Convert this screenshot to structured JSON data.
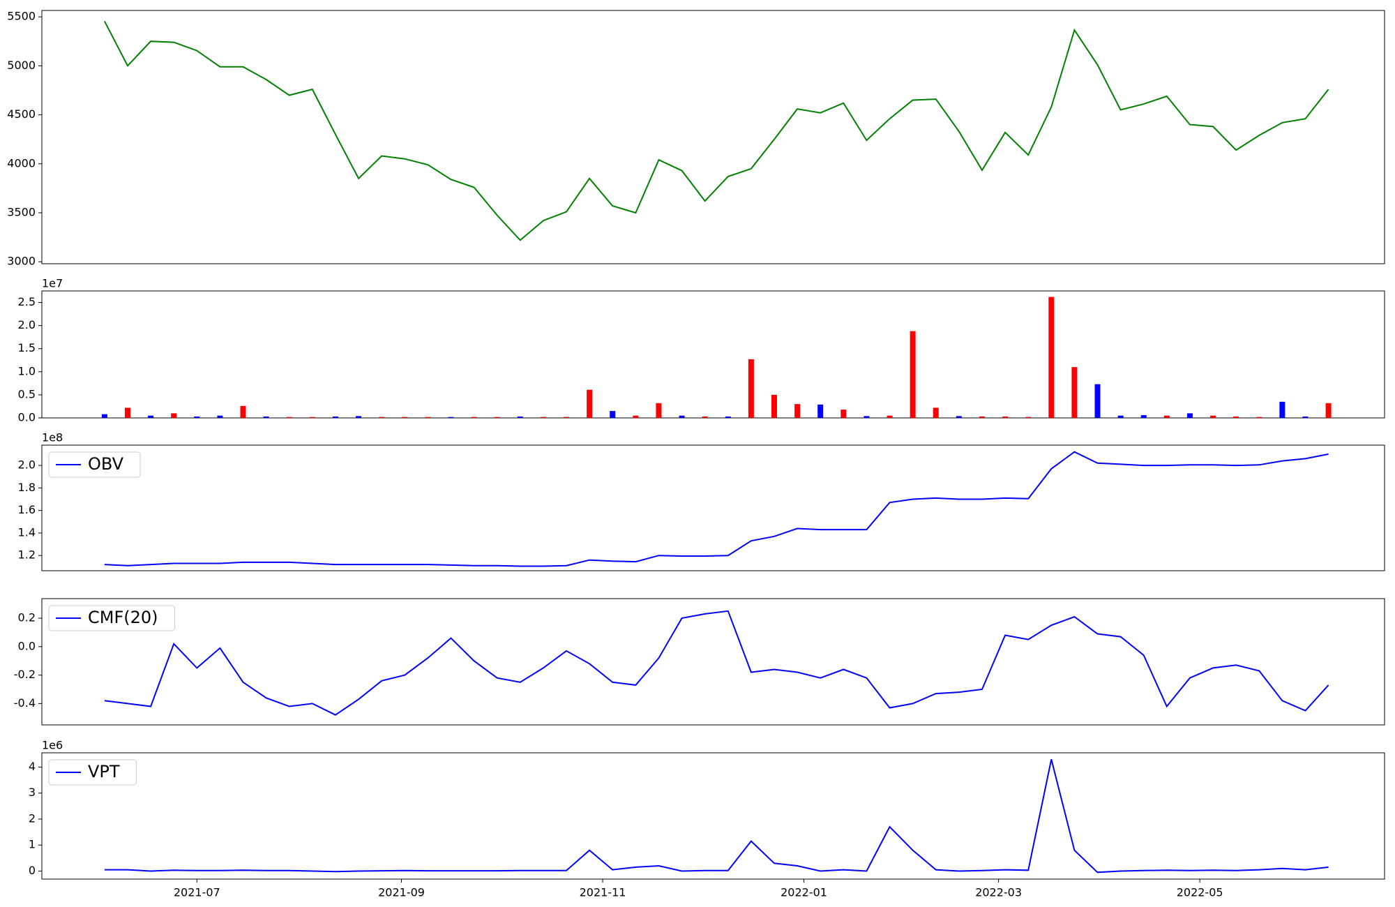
{
  "chart_data": [
    {
      "type": "line",
      "color": "#008000",
      "x": [
        "2021-06-03",
        "2021-06-10",
        "2021-06-17",
        "2021-06-24",
        "2021-07-01",
        "2021-07-08",
        "2021-07-15",
        "2021-07-22",
        "2021-07-29",
        "2021-08-05",
        "2021-08-12",
        "2021-08-19",
        "2021-08-26",
        "2021-09-02",
        "2021-09-09",
        "2021-09-16",
        "2021-09-23",
        "2021-09-30",
        "2021-10-07",
        "2021-10-14",
        "2021-10-21",
        "2021-10-28",
        "2021-11-04",
        "2021-11-11",
        "2021-11-18",
        "2021-11-25",
        "2021-12-02",
        "2021-12-09",
        "2021-12-16",
        "2021-12-23",
        "2021-12-30",
        "2022-01-06",
        "2022-01-13",
        "2022-01-20",
        "2022-01-27",
        "2022-02-03",
        "2022-02-10",
        "2022-02-17",
        "2022-02-24",
        "2022-03-03",
        "2022-03-10",
        "2022-03-17",
        "2022-03-24",
        "2022-03-31",
        "2022-04-07",
        "2022-04-14",
        "2022-04-21",
        "2022-04-28",
        "2022-05-05",
        "2022-05-12",
        "2022-05-19",
        "2022-05-26",
        "2022-06-02",
        "2022-06-09"
      ],
      "values": [
        5455,
        5000,
        5250,
        5240,
        5155,
        4990,
        4990,
        4860,
        4700,
        4760,
        4300,
        3850,
        4080,
        4050,
        3990,
        3840,
        3760,
        3475,
        3220,
        3420,
        3510,
        3850,
        3570,
        3500,
        4040,
        3930,
        3620,
        3870,
        3950,
        4250,
        4560,
        4520,
        4620,
        4240,
        4460,
        4650,
        4660,
        4330,
        3935,
        4320,
        4090,
        4580,
        5365,
        5010,
        4550,
        4610,
        4690,
        4400,
        4380,
        4140,
        4290,
        4420,
        4460,
        4760
      ],
      "xlim": [
        "2021-05-15",
        "2022-06-26"
      ],
      "ylim": [
        2980,
        5565
      ],
      "yticks": [
        3000,
        3500,
        4000,
        4500,
        5000,
        5500
      ]
    },
    {
      "type": "bar",
      "x": [
        "2021-06-03",
        "2021-06-10",
        "2021-06-17",
        "2021-06-24",
        "2021-07-01",
        "2021-07-08",
        "2021-07-15",
        "2021-07-22",
        "2021-07-29",
        "2021-08-05",
        "2021-08-12",
        "2021-08-19",
        "2021-08-26",
        "2021-09-02",
        "2021-09-09",
        "2021-09-16",
        "2021-09-23",
        "2021-09-30",
        "2021-10-07",
        "2021-10-14",
        "2021-10-21",
        "2021-10-28",
        "2021-11-04",
        "2021-11-11",
        "2021-11-18",
        "2021-11-25",
        "2021-12-02",
        "2021-12-09",
        "2021-12-16",
        "2021-12-23",
        "2021-12-30",
        "2022-01-06",
        "2022-01-13",
        "2022-01-20",
        "2022-01-27",
        "2022-02-03",
        "2022-02-10",
        "2022-02-17",
        "2022-02-24",
        "2022-03-03",
        "2022-03-10",
        "2022-03-17",
        "2022-03-24",
        "2022-03-31",
        "2022-04-07",
        "2022-04-14",
        "2022-04-21",
        "2022-04-28",
        "2022-05-05",
        "2022-05-12",
        "2022-05-19",
        "2022-05-26",
        "2022-06-02",
        "2022-06-09"
      ],
      "values": [
        0.08,
        0.22,
        0.05,
        0.1,
        0.03,
        0.05,
        0.26,
        0.03,
        0.02,
        0.02,
        0.03,
        0.04,
        0.02,
        0.02,
        0.02,
        0.02,
        0.02,
        0.02,
        0.03,
        0.02,
        0.02,
        0.61,
        0.15,
        0.05,
        0.32,
        0.05,
        0.03,
        0.03,
        1.27,
        0.5,
        0.3,
        0.29,
        0.18,
        0.04,
        0.05,
        1.88,
        0.22,
        0.04,
        0.03,
        0.03,
        0.02,
        2.62,
        1.1,
        0.73,
        0.05,
        0.06,
        0.05,
        0.1,
        0.05,
        0.03,
        0.02,
        0.35,
        0.03,
        0.32
      ],
      "colors": [
        "#0000ff",
        "#ff0000",
        "#0000ff",
        "#ff0000",
        "#0000ff",
        "#0000ff",
        "#ff0000",
        "#0000ff",
        "#ff0000",
        "#ff0000",
        "#0000ff",
        "#0000ff",
        "#ff0000",
        "#ff0000",
        "#ff0000",
        "#0000ff",
        "#ff0000",
        "#ff0000",
        "#0000ff",
        "#ff0000",
        "#ff0000",
        "#ff0000",
        "#0000ff",
        "#ff0000",
        "#ff0000",
        "#0000ff",
        "#ff0000",
        "#0000ff",
        "#ff0000",
        "#ff0000",
        "#ff0000",
        "#0000ff",
        "#ff0000",
        "#0000ff",
        "#ff0000",
        "#ff0000",
        "#ff0000",
        "#0000ff",
        "#ff0000",
        "#ff0000",
        "#ff0000",
        "#ff0000",
        "#ff0000",
        "#0000ff",
        "#0000ff",
        "#0000ff",
        "#ff0000",
        "#0000ff",
        "#ff0000",
        "#ff0000",
        "#ff0000",
        "#0000ff",
        "#0000ff",
        "#ff0000"
      ],
      "xlim": [
        "2021-05-15",
        "2022-06-26"
      ],
      "ylim": [
        0,
        2.75
      ],
      "offset_label": "1e7",
      "yticks": [
        {
          "value": 0,
          "label": "0.0"
        },
        0.5,
        {
          "value": 1,
          "label": "1.0"
        },
        1.5,
        {
          "value": 2,
          "label": "2.0"
        },
        2.5
      ]
    },
    {
      "type": "line",
      "legend": "upper left",
      "x": [
        "2021-06-03",
        "2021-06-10",
        "2021-06-17",
        "2021-06-24",
        "2021-07-01",
        "2021-07-08",
        "2021-07-15",
        "2021-07-22",
        "2021-07-29",
        "2021-08-05",
        "2021-08-12",
        "2021-08-19",
        "2021-08-26",
        "2021-09-02",
        "2021-09-09",
        "2021-09-16",
        "2021-09-23",
        "2021-09-30",
        "2021-10-07",
        "2021-10-14",
        "2021-10-21",
        "2021-10-28",
        "2021-11-04",
        "2021-11-11",
        "2021-11-18",
        "2021-11-25",
        "2021-12-02",
        "2021-12-09",
        "2021-12-16",
        "2021-12-23",
        "2021-12-30",
        "2022-01-06",
        "2022-01-13",
        "2022-01-20",
        "2022-01-27",
        "2022-02-03",
        "2022-02-10",
        "2022-02-17",
        "2022-02-24",
        "2022-03-03",
        "2022-03-10",
        "2022-03-17",
        "2022-03-24",
        "2022-03-31",
        "2022-04-07",
        "2022-04-14",
        "2022-04-21",
        "2022-04-28",
        "2022-05-05",
        "2022-05-12",
        "2022-05-19",
        "2022-05-26",
        "2022-06-02",
        "2022-06-09"
      ],
      "series": [
        {
          "name": "OBV",
          "color": "#0000ff",
          "values": [
            1.12,
            1.11,
            1.12,
            1.13,
            1.13,
            1.13,
            1.14,
            1.14,
            1.14,
            1.13,
            1.12,
            1.12,
            1.12,
            1.12,
            1.12,
            1.115,
            1.11,
            1.11,
            1.105,
            1.105,
            1.11,
            1.16,
            1.15,
            1.145,
            1.2,
            1.195,
            1.195,
            1.2,
            1.33,
            1.37,
            1.44,
            1.43,
            1.43,
            1.43,
            1.67,
            1.7,
            1.71,
            1.7,
            1.7,
            1.71,
            1.705,
            1.97,
            2.12,
            2.02,
            2.01,
            2.0,
            2.0,
            2.005,
            2.005,
            2.0,
            2.005,
            2.04,
            2.06,
            2.1
          ]
        }
      ],
      "xlim": [
        "2021-05-15",
        "2022-06-26"
      ],
      "ylim": [
        1.065,
        2.18
      ],
      "offset_label": "1e8",
      "yticks": [
        1.2,
        1.4,
        1.6,
        1.8,
        {
          "value": 2,
          "label": "2.0"
        }
      ]
    },
    {
      "type": "line",
      "legend": "upper left",
      "x": [
        "2021-06-03",
        "2021-06-10",
        "2021-06-17",
        "2021-06-24",
        "2021-07-01",
        "2021-07-08",
        "2021-07-15",
        "2021-07-22",
        "2021-07-29",
        "2021-08-05",
        "2021-08-12",
        "2021-08-19",
        "2021-08-26",
        "2021-09-02",
        "2021-09-09",
        "2021-09-16",
        "2021-09-23",
        "2021-09-30",
        "2021-10-07",
        "2021-10-14",
        "2021-10-21",
        "2021-10-28",
        "2021-11-04",
        "2021-11-11",
        "2021-11-18",
        "2021-11-25",
        "2021-12-02",
        "2021-12-09",
        "2021-12-16",
        "2021-12-23",
        "2021-12-30",
        "2022-01-06",
        "2022-01-13",
        "2022-01-20",
        "2022-01-27",
        "2022-02-03",
        "2022-02-10",
        "2022-02-17",
        "2022-02-24",
        "2022-03-03",
        "2022-03-10",
        "2022-03-17",
        "2022-03-24",
        "2022-03-31",
        "2022-04-07",
        "2022-04-14",
        "2022-04-21",
        "2022-04-28",
        "2022-05-05",
        "2022-05-12",
        "2022-05-19",
        "2022-05-26",
        "2022-06-02",
        "2022-06-09"
      ],
      "series": [
        {
          "name": "CMF(20)",
          "color": "#0000ff",
          "values": [
            -0.38,
            -0.4,
            -0.42,
            0.02,
            -0.15,
            -0.01,
            -0.25,
            -0.36,
            -0.42,
            -0.4,
            -0.48,
            -0.37,
            -0.24,
            -0.2,
            -0.08,
            0.06,
            -0.1,
            -0.22,
            -0.25,
            -0.15,
            -0.03,
            -0.12,
            -0.25,
            -0.27,
            -0.08,
            0.2,
            0.23,
            0.25,
            -0.18,
            -0.16,
            -0.18,
            -0.22,
            -0.16,
            -0.22,
            -0.43,
            -0.4,
            -0.33,
            -0.32,
            -0.3,
            0.08,
            0.05,
            0.15,
            0.21,
            0.09,
            0.07,
            -0.06,
            -0.42,
            -0.22,
            -0.15,
            -0.13,
            -0.17,
            -0.38,
            -0.45,
            -0.27
          ]
        }
      ],
      "xlim": [
        "2021-05-15",
        "2022-06-26"
      ],
      "ylim": [
        -0.55,
        0.3375
      ],
      "yticks": [
        -0.4,
        -0.2,
        {
          "value": 0,
          "label": "0.0"
        },
        0.2
      ]
    },
    {
      "type": "line",
      "legend": "upper left",
      "x": [
        "2021-06-03",
        "2021-06-10",
        "2021-06-17",
        "2021-06-24",
        "2021-07-01",
        "2021-07-08",
        "2021-07-15",
        "2021-07-22",
        "2021-07-29",
        "2021-08-05",
        "2021-08-12",
        "2021-08-19",
        "2021-08-26",
        "2021-09-02",
        "2021-09-09",
        "2021-09-16",
        "2021-09-23",
        "2021-09-30",
        "2021-10-07",
        "2021-10-14",
        "2021-10-21",
        "2021-10-28",
        "2021-11-04",
        "2021-11-11",
        "2021-11-18",
        "2021-11-25",
        "2021-12-02",
        "2021-12-09",
        "2021-12-16",
        "2021-12-23",
        "2021-12-30",
        "2022-01-06",
        "2022-01-13",
        "2022-01-20",
        "2022-01-27",
        "2022-02-03",
        "2022-02-10",
        "2022-02-17",
        "2022-02-24",
        "2022-03-03",
        "2022-03-10",
        "2022-03-17",
        "2022-03-24",
        "2022-03-31",
        "2022-04-07",
        "2022-04-14",
        "2022-04-21",
        "2022-04-28",
        "2022-05-05",
        "2022-05-12",
        "2022-05-19",
        "2022-05-26",
        "2022-06-02",
        "2022-06-09"
      ],
      "series": [
        {
          "name": "VPT",
          "color": "#0000ff",
          "values": [
            0.05,
            0.05,
            0.0,
            0.03,
            0.02,
            0.02,
            0.03,
            0.02,
            0.02,
            0.0,
            -0.02,
            0.0,
            0.01,
            0.02,
            0.01,
            0.01,
            0.01,
            0.01,
            0.02,
            0.02,
            0.02,
            0.8,
            0.05,
            0.15,
            0.2,
            0.0,
            0.02,
            0.02,
            1.15,
            0.3,
            0.2,
            0.0,
            0.05,
            0.0,
            1.7,
            0.8,
            0.05,
            0.0,
            0.02,
            0.05,
            0.03,
            4.3,
            0.8,
            -0.05,
            0.0,
            0.02,
            0.03,
            0.02,
            0.03,
            0.02,
            0.05,
            0.1,
            0.05,
            0.15
          ]
        }
      ],
      "xlim": [
        "2021-05-15",
        "2022-06-26"
      ],
      "ylim": [
        -0.31,
        4.55
      ],
      "offset_label": "1e6",
      "yticks": [
        0,
        1,
        2,
        3,
        4
      ],
      "xticks": [
        {
          "value": "2021-07-01",
          "label": "2021-07"
        },
        {
          "value": "2021-09-01",
          "label": "2021-09"
        },
        {
          "value": "2021-11-01",
          "label": "2021-11"
        },
        {
          "value": "2022-01-01",
          "label": "2022-01"
        },
        {
          "value": "2022-03-01",
          "label": "2022-03"
        },
        {
          "value": "2022-05-01",
          "label": "2022-05"
        }
      ]
    }
  ]
}
